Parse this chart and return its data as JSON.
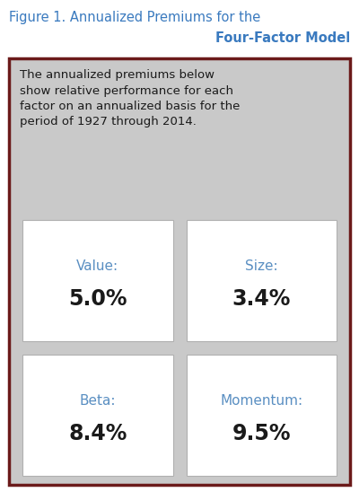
{
  "title_line1": "Figure 1. Annualized Premiums for the",
  "title_line2": "Four-Factor Model",
  "title_color": "#3a7abf",
  "title_fontsize": 10.5,
  "description": "The annualized premiums below\nshow relative performance for each\nfactor on an annualized basis for the\nperiod of 1927 through 2014.",
  "description_fontsize": 9.5,
  "description_color": "#1a1a1a",
  "bg_color": "#c9c9c9",
  "box_bg_color": "#ffffff",
  "box_border_color": "#b0b0b0",
  "outer_border_color": "#6b1a1a",
  "factors": [
    {
      "label": "Value:",
      "value": "5.0%",
      "row": 0,
      "col": 0
    },
    {
      "label": "Size:",
      "value": "3.4%",
      "row": 0,
      "col": 1
    },
    {
      "label": "Beta:",
      "value": "8.4%",
      "row": 1,
      "col": 0
    },
    {
      "label": "Momentum:",
      "value": "9.5%",
      "row": 1,
      "col": 1
    }
  ],
  "label_color": "#5a8fc2",
  "value_color": "#1a1a1a",
  "label_fontsize": 11,
  "value_fontsize": 17,
  "fig_bg_color": "#ffffff"
}
